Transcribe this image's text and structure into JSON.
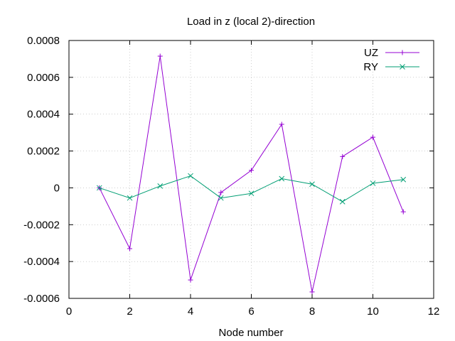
{
  "chart_data": {
    "type": "line",
    "title": "Load in z (local 2)-direction",
    "xlabel": "Node number",
    "ylabel": "",
    "xlim": [
      0,
      12
    ],
    "ylim": [
      -0.0006,
      0.0008
    ],
    "xticks": [
      0,
      2,
      4,
      6,
      8,
      10,
      12
    ],
    "xtick_labels": [
      "0",
      "2",
      "4",
      "6",
      "8",
      "10",
      "12"
    ],
    "yticks": [
      -0.0006,
      -0.0004,
      -0.0002,
      0,
      0.0002,
      0.0004,
      0.0006,
      0.0008
    ],
    "ytick_labels": [
      "-0.0006",
      "-0.0004",
      "-0.0002",
      "0",
      "0.0002",
      "0.0004",
      "0.0006",
      "0.0008"
    ],
    "grid": true,
    "legend_position": "top-right",
    "x": [
      1,
      2,
      3,
      4,
      5,
      6,
      7,
      8,
      9,
      10,
      11
    ],
    "series": [
      {
        "name": "UZ",
        "marker": "plus",
        "color": "#9400d3",
        "values": [
          0.0,
          -0.00033,
          0.000715,
          -0.0005,
          -2.5e-05,
          9.5e-05,
          0.000345,
          -0.000565,
          0.00017,
          0.000275,
          -0.00013
        ]
      },
      {
        "name": "RY",
        "marker": "cross",
        "color": "#009e73",
        "values": [
          0.0,
          -5.5e-05,
          1e-05,
          6.5e-05,
          -5.5e-05,
          -3e-05,
          5e-05,
          2e-05,
          -7.5e-05,
          2.5e-05,
          4.5e-05
        ]
      }
    ]
  }
}
